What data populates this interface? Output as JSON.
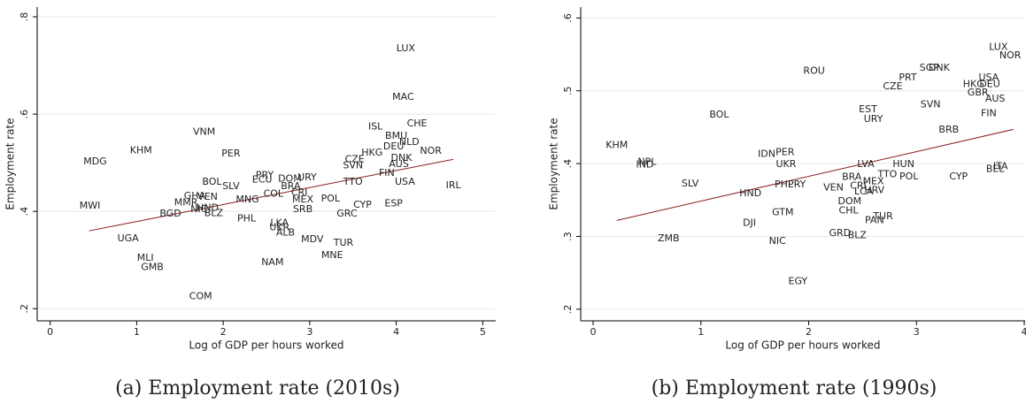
{
  "chart_data": [
    {
      "type": "scatter",
      "caption": "(a) Employment rate (2010s)",
      "xlabel": "Log of GDP per hours worked",
      "ylabel": "Employment rate",
      "xlim": [
        -0.15,
        5.15
      ],
      "ylim": [
        0.175,
        0.82
      ],
      "xticks": [
        0,
        1,
        2,
        3,
        4,
        5
      ],
      "yticks": [
        {
          "value": 0.2,
          "label": ".2"
        },
        {
          "value": 0.4,
          "label": ".4"
        },
        {
          "value": 0.6,
          "label": ".6"
        },
        {
          "value": 0.8,
          "label": ".8"
        }
      ],
      "grid": true,
      "color": "#222222",
      "highlight_color": "#c00000",
      "highlight": [
        23
      ],
      "fit": {
        "x": [
          0.45,
          4.66
        ],
        "y": [
          0.36,
          0.507
        ],
        "color": "#8b1a1a"
      },
      "labels": [
        "LUX",
        "MAC",
        "CHE",
        "ISL",
        "VNM",
        "BMU",
        "NLD",
        "DEU",
        "KHM",
        "HKG",
        "PER",
        "NOR",
        "MDG",
        "CZE",
        "SVN",
        "DNK",
        "AUS",
        "FIN",
        "PRY",
        "ECU",
        "DOM",
        "BOL",
        "SLV",
        "USA",
        "BRA",
        "IRL",
        "TTO",
        "CRI",
        "COL",
        "VEN",
        "GHA",
        "MEX",
        "MNG",
        "MMR",
        "HND",
        "NIC",
        "BLZ",
        "MWI",
        "BGD",
        "SRB",
        "ESP",
        "CYP",
        "GRC",
        "PHL",
        "LKA",
        "UKR",
        "ALB",
        "MDV",
        "TUR",
        "UGA",
        "MNE",
        "MLI",
        "GMB",
        "NAM",
        "COM",
        "URY",
        "POL"
      ],
      "x": [
        4.11,
        4.08,
        4.24,
        3.76,
        1.78,
        4.0,
        4.15,
        3.97,
        1.05,
        3.72,
        2.09,
        4.4,
        0.52,
        3.52,
        3.5,
        4.06,
        4.03,
        3.89,
        2.48,
        2.45,
        2.77,
        1.87,
        2.09,
        4.1,
        2.78,
        4.66,
        3.5,
        2.88,
        2.58,
        1.82,
        1.67,
        2.92,
        2.28,
        1.57,
        1.82,
        1.72,
        1.89,
        0.46,
        1.39,
        2.92,
        3.97,
        3.61,
        3.43,
        2.27,
        2.65,
        2.65,
        2.72,
        3.03,
        3.39,
        0.9,
        3.26,
        1.1,
        1.18,
        2.57,
        1.74,
        2.97,
        3.24
      ],
      "y": [
        0.735,
        0.635,
        0.58,
        0.574,
        0.563,
        0.555,
        0.542,
        0.533,
        0.525,
        0.52,
        0.518,
        0.524,
        0.502,
        0.507,
        0.494,
        0.509,
        0.497,
        0.478,
        0.474,
        0.465,
        0.467,
        0.46,
        0.451,
        0.46,
        0.451,
        0.453,
        0.46,
        0.438,
        0.436,
        0.429,
        0.431,
        0.424,
        0.424,
        0.418,
        0.407,
        0.404,
        0.396,
        0.411,
        0.395,
        0.404,
        0.416,
        0.413,
        0.395,
        0.385,
        0.376,
        0.367,
        0.356,
        0.342,
        0.335,
        0.344,
        0.309,
        0.304,
        0.285,
        0.295,
        0.225,
        0.469,
        0.426
      ]
    },
    {
      "type": "scatter",
      "caption": "(b) Employment rate (1990s)",
      "xlabel": "Log of GDP per hours worked",
      "ylabel": "Employment rate",
      "xlim": [
        -0.115,
        4.008
      ],
      "ylim": [
        0.184,
        0.615
      ],
      "xticks": [
        0,
        1,
        2,
        3,
        4
      ],
      "yticks": [
        {
          "value": 0.2,
          "label": ".2"
        },
        {
          "value": 0.3,
          "label": ".3"
        },
        {
          "value": 0.4,
          "label": ".4"
        },
        {
          "value": 0.5,
          "label": ".5"
        },
        {
          "value": 0.6,
          "label": ".6"
        }
      ],
      "grid": true,
      "color": "#222222",
      "highlight_color": "#c00000",
      "highlight": [
        5
      ],
      "fit": {
        "x": [
          0.22,
          3.9
        ],
        "y": [
          0.322,
          0.447
        ],
        "color": "#8b1a1a"
      },
      "labels": [
        "LUX",
        "NOR",
        "SGP",
        "DNK",
        "PRT",
        "USA",
        "HKG",
        "DEU",
        "CZE",
        "ROU",
        "GBR",
        "AUS",
        "SVN",
        "EST",
        "FIN",
        "URY",
        "BOL",
        "KHM",
        "BRB",
        "IDN",
        "PER",
        "UKR",
        "NPL",
        "IND",
        "LVA",
        "HUN",
        "ITA",
        "BEL",
        "SLV",
        "BRA",
        "MEX",
        "TTO",
        "POL",
        "CYP",
        "PHL",
        "PRY",
        "VEN",
        "CRI",
        "LCA",
        "HRV",
        "HND",
        "DOM",
        "GTM",
        "CHL",
        "TUR",
        "PAN",
        "DJI",
        "ZMB",
        "GRD",
        "BLZ",
        "NIC",
        "EGY"
      ],
      "x": [
        3.76,
        3.87,
        3.12,
        3.21,
        2.92,
        3.67,
        3.53,
        3.68,
        2.78,
        2.05,
        3.57,
        3.73,
        3.13,
        2.55,
        3.67,
        2.6,
        1.17,
        0.22,
        3.3,
        1.61,
        1.78,
        1.79,
        0.5,
        0.48,
        2.53,
        2.88,
        3.78,
        3.73,
        0.9,
        2.4,
        2.6,
        2.73,
        2.93,
        3.39,
        1.77,
        1.89,
        2.23,
        2.46,
        2.51,
        2.61,
        1.46,
        2.38,
        1.76,
        2.37,
        2.69,
        2.61,
        1.45,
        0.7,
        2.29,
        2.45,
        1.71,
        1.9
      ],
      "y": [
        0.56,
        0.548,
        0.531,
        0.531,
        0.518,
        0.518,
        0.509,
        0.509,
        0.506,
        0.527,
        0.497,
        0.489,
        0.481,
        0.474,
        0.469,
        0.461,
        0.467,
        0.425,
        0.446,
        0.413,
        0.415,
        0.399,
        0.402,
        0.398,
        0.399,
        0.399,
        0.396,
        0.392,
        0.372,
        0.381,
        0.375,
        0.385,
        0.382,
        0.382,
        0.371,
        0.371,
        0.367,
        0.369,
        0.361,
        0.363,
        0.359,
        0.348,
        0.333,
        0.335,
        0.327,
        0.322,
        0.318,
        0.297,
        0.304,
        0.301,
        0.293,
        0.238
      ]
    }
  ]
}
